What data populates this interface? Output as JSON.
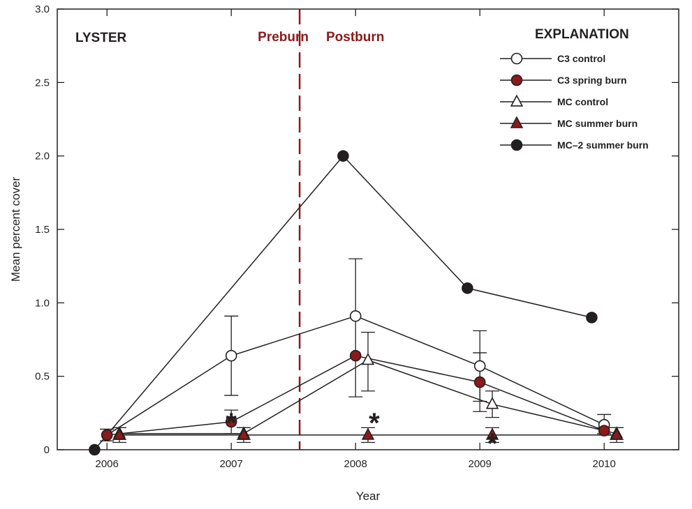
{
  "chart_data": {
    "type": "line",
    "xlabel": "Year",
    "ylabel": "Mean percent cover",
    "xlim": [
      2005.6,
      2010.6
    ],
    "ylim": [
      0,
      3.0
    ],
    "x_ticks": [
      2006,
      2007,
      2008,
      2009,
      2010
    ],
    "x_tick_labels": [
      "2006",
      "2007",
      "2008",
      "2009",
      "2010"
    ],
    "y_ticks": [
      0,
      0.5,
      1.0,
      1.5,
      2.0,
      2.5,
      3.0
    ],
    "y_tick_labels": [
      "0",
      "0.5",
      "1.0",
      "1.5",
      "2.0",
      "2.5",
      "3.0"
    ],
    "site_label": "LYSTER",
    "divider": {
      "x": 2007.55,
      "left_label": "Preburn",
      "right_label": "Postburn",
      "color": "#8b1a1a"
    },
    "legend": {
      "title": "EXPLANATION",
      "placement": "top-right"
    },
    "series": [
      {
        "name": "C3 control",
        "marker": "circle",
        "fill": "#ffffff",
        "points": [
          {
            "x": 2006.0,
            "y": 0.1,
            "err_hi": 0.14,
            "err_lo": 0.06
          },
          {
            "x": 2007.0,
            "y": 0.64,
            "err_hi": 0.91,
            "err_lo": 0.37
          },
          {
            "x": 2008.0,
            "y": 0.91,
            "err_hi": 1.3,
            "err_lo": 0.36
          },
          {
            "x": 2009.0,
            "y": 0.57,
            "err_hi": 0.81,
            "err_lo": 0.33
          },
          {
            "x": 2010.0,
            "y": 0.17,
            "err_hi": 0.24,
            "err_lo": 0.1
          }
        ]
      },
      {
        "name": "C3 spring burn",
        "marker": "circle",
        "fill": "#8b1a1a",
        "points": [
          {
            "x": 2006.0,
            "y": 0.1,
            "err_hi": 0.14,
            "err_lo": 0.06
          },
          {
            "x": 2007.0,
            "y": 0.19,
            "err_hi": 0.27,
            "err_lo": 0.11
          },
          {
            "x": 2008.0,
            "y": 0.64
          },
          {
            "x": 2009.0,
            "y": 0.46,
            "err_hi": 0.66,
            "err_lo": 0.26
          },
          {
            "x": 2010.0,
            "y": 0.13,
            "err_hi": 0.15,
            "err_lo": 0.11
          }
        ]
      },
      {
        "name": "MC control",
        "marker": "triangle",
        "fill": "#ffffff",
        "points": [
          {
            "x": 2006.1,
            "y": 0.11,
            "err_hi": 0.15,
            "err_lo": 0.07
          },
          {
            "x": 2007.1,
            "y": 0.11,
            "err_hi": 0.15,
            "err_lo": 0.07
          },
          {
            "x": 2008.1,
            "y": 0.61,
            "err_hi": 0.8,
            "err_lo": 0.4
          },
          {
            "x": 2009.1,
            "y": 0.31,
            "err_hi": 0.4,
            "err_lo": 0.22
          },
          {
            "x": 2010.1,
            "y": 0.11,
            "err_hi": 0.15,
            "err_lo": 0.07
          }
        ]
      },
      {
        "name": "MC summer burn",
        "marker": "triangle",
        "fill": "#8b1a1a",
        "points": [
          {
            "x": 2006.1,
            "y": 0.1,
            "err_hi": 0.15,
            "err_lo": 0.05
          },
          {
            "x": 2007.1,
            "y": 0.1,
            "err_hi": 0.15,
            "err_lo": 0.05
          },
          {
            "x": 2008.1,
            "y": 0.1,
            "err_hi": 0.15,
            "err_lo": 0.05
          },
          {
            "x": 2009.1,
            "y": 0.1,
            "err_hi": 0.15,
            "err_lo": 0.05
          },
          {
            "x": 2010.1,
            "y": 0.1,
            "err_hi": 0.15,
            "err_lo": 0.05
          }
        ]
      },
      {
        "name": "MC–2 summer burn",
        "marker": "circle",
        "fill": "#231f20",
        "points": [
          {
            "x": 2005.9,
            "y": 0.0
          },
          {
            "x": 2007.9,
            "y": 2.0
          },
          {
            "x": 2008.9,
            "y": 1.1
          },
          {
            "x": 2009.9,
            "y": 0.9
          }
        ]
      }
    ],
    "annotations": [
      {
        "text": "*",
        "x": 2007.0,
        "y": 0.27
      },
      {
        "text": "*",
        "x": 2008.15,
        "y": 0.27
      },
      {
        "text": "*",
        "x": 2009.1,
        "y": 0.13
      }
    ]
  }
}
